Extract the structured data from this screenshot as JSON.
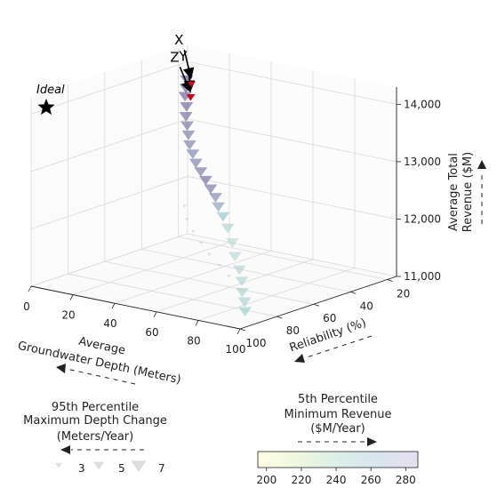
{
  "chart_data": {
    "type": "scatter3d",
    "axes": {
      "x": {
        "label_line1": "Average",
        "label_line2": "Groundwater Depth (Meters)",
        "ticks": [
          0,
          20,
          40,
          60,
          80,
          100
        ],
        "range": [
          0,
          100
        ]
      },
      "y": {
        "label": "Reliability (%)",
        "ticks": [
          20,
          40,
          60,
          80,
          100
        ],
        "range": [
          15,
          100
        ]
      },
      "z": {
        "label_line1": "Average Total",
        "label_line2": "Revenue ($M)",
        "ticks": [
          11000,
          12000,
          13000,
          14000
        ],
        "tick_labels": [
          "11,000",
          "12,000",
          "13,000",
          "14,000"
        ],
        "range": [
          11000,
          14300
        ]
      }
    },
    "ideal": {
      "label": "Ideal",
      "x": 0,
      "y": 100,
      "z": 14300
    },
    "highlighted": [
      {
        "label": "Z",
        "x": 12,
        "y": 27,
        "z": 13600
      },
      {
        "label": "Y",
        "x": 14,
        "y": 29,
        "z": 13650
      },
      {
        "label": "X",
        "x": 8,
        "y": 22,
        "z": 13750
      }
    ],
    "size_legend": {
      "title_line1": "95th Percentile",
      "title_line2": "Maximum Depth Change",
      "title_line3": "(Meters/Year)",
      "entries": [
        {
          "value": 3,
          "label": "3"
        },
        {
          "value": 5,
          "label": "5"
        },
        {
          "value": 7,
          "label": "7"
        }
      ]
    },
    "colorbar": {
      "title_line1": "5th Percentile",
      "title_line2": "Minimum Revenue",
      "title_line3": "($M/Year)",
      "ticks": [
        200,
        220,
        240,
        260,
        280
      ],
      "range": [
        195,
        287
      ]
    },
    "colors": {
      "low": "#ffffe5",
      "mid": "#7fb9c0",
      "high": "#4a2c7a",
      "highlight": "#c8001e"
    },
    "grid": true,
    "point_marker": "triangle-down",
    "series_front": {
      "points": [
        {
          "x": 98,
          "y": 95,
          "z": 11250,
          "c": 235,
          "s": 5
        },
        {
          "x": 96,
          "y": 93,
          "z": 11380,
          "c": 232,
          "s": 5
        },
        {
          "x": 94,
          "y": 92,
          "z": 11520,
          "c": 230,
          "s": 5
        },
        {
          "x": 92,
          "y": 90,
          "z": 11680,
          "c": 228,
          "s": 5
        },
        {
          "x": 90,
          "y": 89,
          "z": 11850,
          "c": 226,
          "s": 5
        },
        {
          "x": 87,
          "y": 88,
          "z": 12050,
          "c": 225,
          "s": 5
        },
        {
          "x": 84,
          "y": 86,
          "z": 12250,
          "c": 224,
          "s": 5
        },
        {
          "x": 80,
          "y": 84,
          "z": 12450,
          "c": 230,
          "s": 5
        },
        {
          "x": 76,
          "y": 82,
          "z": 12600,
          "c": 240,
          "s": 5
        },
        {
          "x": 72,
          "y": 80,
          "z": 12720,
          "c": 255,
          "s": 5
        },
        {
          "x": 68,
          "y": 77,
          "z": 12820,
          "c": 265,
          "s": 5
        },
        {
          "x": 63,
          "y": 74,
          "z": 12900,
          "c": 272,
          "s": 5
        },
        {
          "x": 58,
          "y": 71,
          "z": 12980,
          "c": 275,
          "s": 5
        },
        {
          "x": 53,
          "y": 68,
          "z": 13060,
          "c": 270,
          "s": 5
        },
        {
          "x": 48,
          "y": 65,
          "z": 13140,
          "c": 268,
          "s": 5
        },
        {
          "x": 43,
          "y": 61,
          "z": 13220,
          "c": 266,
          "s": 5
        },
        {
          "x": 38,
          "y": 57,
          "z": 13300,
          "c": 268,
          "s": 5
        },
        {
          "x": 33,
          "y": 52,
          "z": 13380,
          "c": 270,
          "s": 5
        },
        {
          "x": 28,
          "y": 47,
          "z": 13450,
          "c": 272,
          "s": 5
        },
        {
          "x": 23,
          "y": 42,
          "z": 13520,
          "c": 275,
          "s": 5
        },
        {
          "x": 18,
          "y": 36,
          "z": 13590,
          "c": 278,
          "s": 5
        },
        {
          "x": 12,
          "y": 30,
          "z": 13660,
          "c": 280,
          "s": 5
        },
        {
          "x": 8,
          "y": 25,
          "z": 13720,
          "c": 282,
          "s": 5
        },
        {
          "x": 4,
          "y": 20,
          "z": 13780,
          "c": 284,
          "s": 5
        }
      ]
    },
    "series_shadow": {
      "points": [
        {
          "x": 70,
          "y": 72,
          "z": 11400,
          "c": 245,
          "s": 3
        },
        {
          "x": 60,
          "y": 66,
          "z": 11450,
          "c": 250,
          "s": 3
        },
        {
          "x": 50,
          "y": 60,
          "z": 11500,
          "c": 255,
          "s": 3
        },
        {
          "x": 40,
          "y": 53,
          "z": 11550,
          "c": 262,
          "s": 3
        },
        {
          "x": 30,
          "y": 46,
          "z": 11600,
          "c": 268,
          "s": 3
        },
        {
          "x": 20,
          "y": 38,
          "z": 11650,
          "c": 274,
          "s": 3
        },
        {
          "x": 10,
          "y": 28,
          "z": 11700,
          "c": 280,
          "s": 3
        }
      ]
    }
  }
}
